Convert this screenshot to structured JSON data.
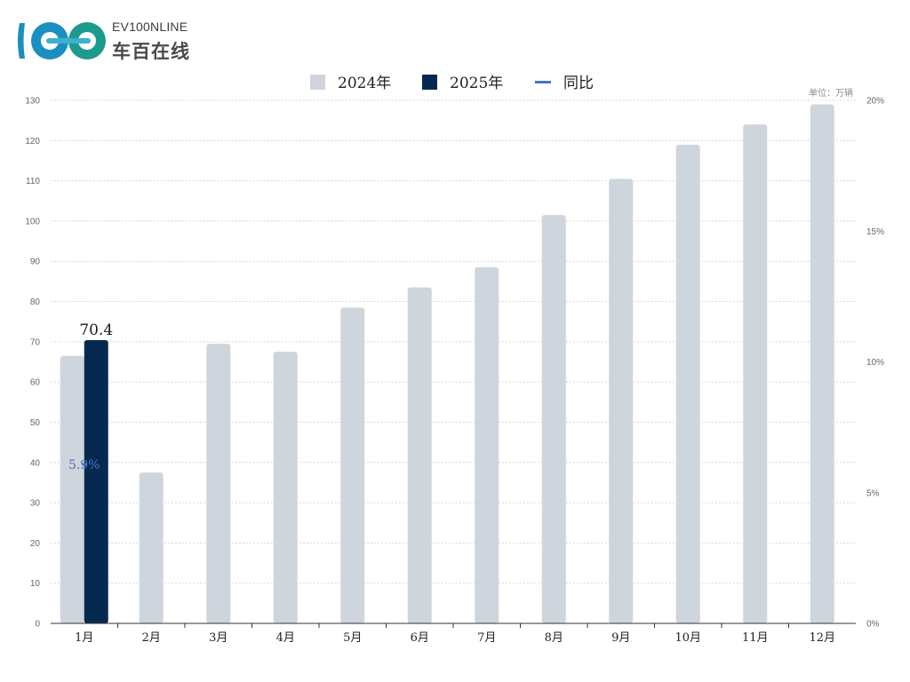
{
  "logo": {
    "top_text": "EV100NLINE",
    "cn_text": "车百在线",
    "colors": [
      "#1a8fc0",
      "#1d9a8e",
      "#3bb0d0"
    ]
  },
  "unit_label": "单位：万辆",
  "colors": {
    "series_2024": "#cfd5dc",
    "series_2025": "#062a4f",
    "yoy_line": "#4a72c4",
    "grid": "#d8d8d8"
  },
  "chart_data": {
    "type": "bar",
    "categories": [
      "1月",
      "2月",
      "3月",
      "4月",
      "5月",
      "6月",
      "7月",
      "8月",
      "9月",
      "10月",
      "11月",
      "12月"
    ],
    "series": [
      {
        "name": "2024年",
        "values": [
          66.5,
          37.5,
          69.5,
          67.5,
          78.5,
          83.5,
          88.5,
          101.5,
          110.5,
          119,
          124,
          129
        ]
      },
      {
        "name": "2025年",
        "values": [
          70.4,
          null,
          null,
          null,
          null,
          null,
          null,
          null,
          null,
          null,
          null,
          null
        ]
      }
    ],
    "line_series": {
      "name": "同比",
      "values": [
        5.9,
        null,
        null,
        null,
        null,
        null,
        null,
        null,
        null,
        null,
        null,
        null
      ]
    },
    "data_labels": {
      "2025年": [
        "70.4"
      ],
      "同比": [
        "5.9%"
      ]
    },
    "ylim": [
      0,
      130
    ],
    "yticks": [
      "0",
      "10",
      "20",
      "30",
      "40",
      "50",
      "60",
      "70",
      "80",
      "90",
      "100",
      "110",
      "120",
      "130"
    ],
    "y2lim": [
      0,
      20
    ],
    "y2ticks": [
      "0%",
      "5%",
      "10%",
      "15%",
      "20%"
    ],
    "legend_position": "top-center",
    "grid": true
  }
}
